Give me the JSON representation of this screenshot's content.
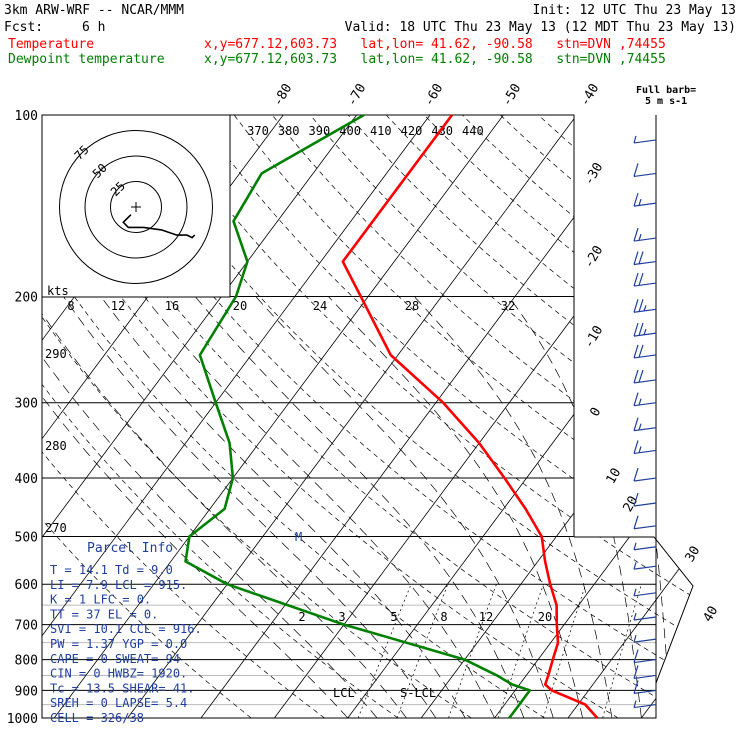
{
  "header": {
    "model": "3km ARW-WRF -- NCAR/MMM",
    "init": "Init: 12 UTC Thu 23 May 13",
    "fcst_label": "Fcst:",
    "fcst_value": "6 h",
    "valid": "Valid: 18 UTC Thu 23 May 13 (12 MDT Thu 23 May 13)",
    "temp_label": "Temperature",
    "temp_loc": "x,y=677.12,603.73   lat,lon= 41.62, -90.58   stn=DVN ,74455",
    "dew_label": "Dewpoint temperature",
    "dew_loc": "x,y=677.12,603.73   lat,lon= 41.62, -90.58   stn=DVN ,74455"
  },
  "colors": {
    "temperature": "#ff0000",
    "dewpoint": "#008000",
    "parcel_info": "#1f3f9f",
    "wind_barbs": "#1f3f9f",
    "hodo_trace": "#000000",
    "grid": "#000000",
    "background": "#ffffff"
  },
  "chart_data": [
    {
      "type": "line",
      "subtype": "skew-T log-P sounding",
      "title": "",
      "y_axis": {
        "scale": "log",
        "reversed": true,
        "ylim": [
          1000,
          100
        ],
        "ticks": [
          "100",
          "200",
          "300",
          "400",
          "500",
          "600",
          "700",
          "800",
          "900",
          "1000"
        ]
      },
      "isotherm_labels": [
        "-80",
        "-70",
        "-60",
        "-50",
        "-40",
        "-30",
        "-20",
        "-10",
        "0",
        "10",
        "20",
        "30",
        "40"
      ],
      "isentrope_labels": [
        "370",
        "380",
        "390",
        "400",
        "410",
        "420",
        "430",
        "440"
      ],
      "mixing_ratio_labels": [
        "2",
        "3",
        "5",
        "8",
        "12",
        "20"
      ],
      "series": [
        {
          "name": "Temperature",
          "points": [
            [
              100,
              -57
            ],
            [
              150,
              -57
            ],
            [
              175,
              -57
            ],
            [
              200,
              -51
            ],
            [
              250,
              -41
            ],
            [
              300,
              -29
            ],
            [
              350,
              -20
            ],
            [
              400,
              -13
            ],
            [
              450,
              -7
            ],
            [
              500,
              -2
            ],
            [
              550,
              1
            ],
            [
              600,
              4
            ],
            [
              650,
              7
            ],
            [
              700,
              9
            ],
            [
              750,
              11
            ],
            [
              800,
              12
            ],
            [
              850,
              13
            ],
            [
              880,
              13.5
            ],
            [
              900,
              15
            ],
            [
              950,
              21
            ],
            [
              1000,
              24
            ]
          ]
        },
        {
          "name": "Dewpoint temperature",
          "points": [
            [
              100,
              -69
            ],
            [
              125,
              -77
            ],
            [
              150,
              -76
            ],
            [
              175,
              -70
            ],
            [
              200,
              -68
            ],
            [
              250,
              -67
            ],
            [
              300,
              -60
            ],
            [
              350,
              -54
            ],
            [
              400,
              -50
            ],
            [
              450,
              -48
            ],
            [
              500,
              -50
            ],
            [
              550,
              -48
            ],
            [
              600,
              -40
            ],
            [
              700,
              -20
            ],
            [
              800,
              0
            ],
            [
              850,
              6
            ],
            [
              880,
              9
            ],
            [
              900,
              12
            ],
            [
              950,
              12
            ],
            [
              1000,
              12
            ]
          ]
        }
      ],
      "annotations": [
        {
          "text": "M"
        },
        {
          "text": "LCL"
        },
        {
          "text": "S-LCL"
        }
      ],
      "parcel_info": {
        "title": "Parcel Info",
        "rows": [
          "T  =   14.1  Td =   9.0",
          "LI =    7.9  LCL =  915.",
          "K  =      1  LFC =    0.",
          "TT =     37  EL  =    0.",
          "SVI =  10.1  CCL =  916.",
          "PW =   1.37  YGP =   0.0",
          "CAPE =    0  SWEAT=   94",
          "CIN =     0  HWBZ= 1920.",
          "Tc =   13.5  SHEAR=  41.",
          "SREH =    0  LAPSE=  5.4",
          "CELL = 326/38"
        ]
      }
    },
    {
      "type": "scatter",
      "subtype": "hodograph",
      "title": "",
      "rings": [
        "75",
        "50",
        "25"
      ],
      "speed_axis_label": "kts",
      "speed_ticks": [
        "8",
        "12",
        "16",
        "20",
        "24",
        "28",
        "32"
      ],
      "trace_uv": [
        [
          -2,
          -3
        ],
        [
          -5,
          -6
        ],
        [
          -3,
          -8
        ],
        [
          3,
          -8
        ],
        [
          10,
          -9
        ],
        [
          16,
          -11
        ],
        [
          20,
          -11
        ],
        [
          22,
          -12
        ],
        [
          23,
          -11
        ]
      ]
    },
    {
      "type": "scatter",
      "subtype": "wind barbs",
      "legend": "Full barb=\n5 m s-1",
      "barbs": [
        {
          "p": 110,
          "flags": 0,
          "full": 0,
          "half": 1
        },
        {
          "p": 125,
          "flags": 0,
          "full": 1,
          "half": 0
        },
        {
          "p": 140,
          "flags": 0,
          "full": 1,
          "half": 1
        },
        {
          "p": 160,
          "flags": 0,
          "full": 1,
          "half": 1
        },
        {
          "p": 175,
          "flags": 0,
          "full": 2,
          "half": 0
        },
        {
          "p": 190,
          "flags": 0,
          "full": 2,
          "half": 0
        },
        {
          "p": 210,
          "flags": 0,
          "full": 2,
          "half": 1
        },
        {
          "p": 230,
          "flags": 0,
          "full": 2,
          "half": 1
        },
        {
          "p": 250,
          "flags": 0,
          "full": 2,
          "half": 0
        },
        {
          "p": 275,
          "flags": 0,
          "full": 2,
          "half": 0
        },
        {
          "p": 300,
          "flags": 0,
          "full": 1,
          "half": 1
        },
        {
          "p": 330,
          "flags": 0,
          "full": 1,
          "half": 1
        },
        {
          "p": 360,
          "flags": 0,
          "full": 1,
          "half": 1
        },
        {
          "p": 400,
          "flags": 0,
          "full": 1,
          "half": 0
        },
        {
          "p": 440,
          "flags": 0,
          "full": 1,
          "half": 0
        },
        {
          "p": 480,
          "flags": 0,
          "full": 1,
          "half": 0
        },
        {
          "p": 520,
          "flags": 0,
          "full": 0,
          "half": 1
        },
        {
          "p": 560,
          "flags": 0,
          "full": 0,
          "half": 1
        },
        {
          "p": 620,
          "flags": 0,
          "full": 0,
          "half": 1
        },
        {
          "p": 680,
          "flags": 0,
          "full": 0,
          "half": 1
        },
        {
          "p": 740,
          "flags": 0,
          "full": 0,
          "half": 1
        },
        {
          "p": 800,
          "flags": 0,
          "full": 1,
          "half": 0
        },
        {
          "p": 850,
          "flags": 0,
          "full": 1,
          "half": 0
        },
        {
          "p": 900,
          "flags": 0,
          "full": 1,
          "half": 0
        },
        {
          "p": 950,
          "flags": 0,
          "full": 0,
          "half": 1
        }
      ]
    }
  ]
}
